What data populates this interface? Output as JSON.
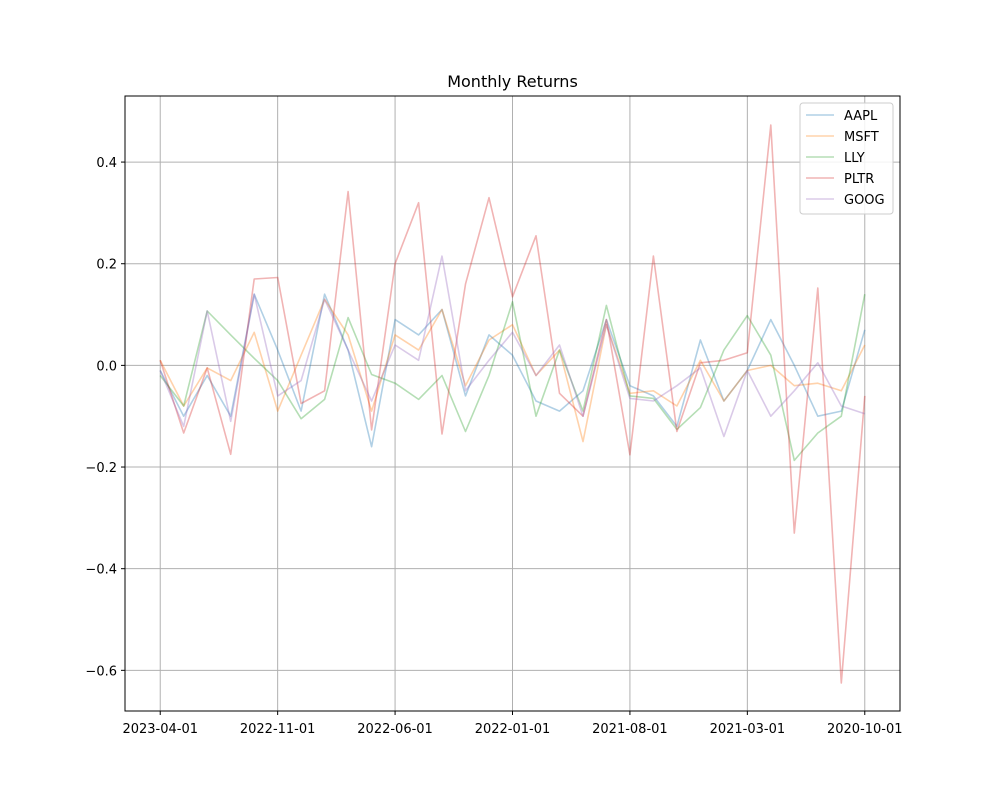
{
  "chart_data": {
    "type": "line",
    "title": "Monthly Returns",
    "xlabel": "",
    "ylabel": "",
    "x_tick_labels": [
      "2023-04-01",
      "2022-11-01",
      "2022-06-01",
      "2022-01-01",
      "2021-08-01",
      "2021-03-01",
      "2020-10-01"
    ],
    "x_tick_indices": [
      0,
      5,
      10,
      15,
      20,
      25,
      30
    ],
    "x": [
      "2023-04-01",
      "2023-03-01",
      "2023-02-01",
      "2023-01-01",
      "2022-12-01",
      "2022-11-01",
      "2022-10-01",
      "2022-09-01",
      "2022-08-01",
      "2022-07-01",
      "2022-06-01",
      "2022-05-01",
      "2022-04-01",
      "2022-03-01",
      "2022-02-01",
      "2022-01-01",
      "2021-12-01",
      "2021-11-01",
      "2021-10-01",
      "2021-09-01",
      "2021-08-01",
      "2021-07-01",
      "2021-06-01",
      "2021-05-01",
      "2021-04-01",
      "2021-03-01",
      "2021-02-01",
      "2021-01-01",
      "2020-12-01",
      "2020-11-01",
      "2020-10-01"
    ],
    "ylim": [
      -0.68,
      0.53
    ],
    "y_ticks": [
      -0.6,
      -0.4,
      -0.2,
      0.0,
      0.2,
      0.4
    ],
    "y_tick_labels": [
      "−0.6",
      "−0.4",
      "−0.2",
      "0.0",
      "0.2",
      "0.4"
    ],
    "xlim": [
      -1.5,
      31.5
    ],
    "grid": true,
    "legend_position": "top-right",
    "series": [
      {
        "name": "AAPL",
        "color": "#1f77b4",
        "values": [
          -0.01,
          -0.1,
          -0.02,
          -0.1,
          0.14,
          0.03,
          -0.09,
          0.14,
          0.03,
          -0.16,
          0.09,
          0.06,
          0.11,
          -0.06,
          0.06,
          0.02,
          -0.07,
          -0.09,
          -0.05,
          0.09,
          -0.04,
          -0.06,
          -0.12,
          0.05,
          -0.07,
          -0.01,
          0.09,
          0.0,
          -0.1,
          -0.09,
          0.07
        ]
      },
      {
        "name": "MSFT",
        "color": "#ff7f0e",
        "values": [
          0.01,
          -0.08,
          -0.005,
          -0.03,
          0.065,
          -0.09,
          0.02,
          0.13,
          0.06,
          -0.09,
          0.06,
          0.03,
          0.11,
          -0.04,
          0.05,
          0.08,
          -0.02,
          0.03,
          -0.15,
          0.08,
          -0.055,
          -0.05,
          -0.08,
          0.01,
          -0.07,
          -0.01,
          0.0,
          -0.04,
          -0.035,
          -0.05,
          0.04
        ]
      },
      {
        "name": "LLY",
        "color": "#2ca02c",
        "values": [
          -0.02,
          -0.08,
          0.107,
          0.06,
          0.014,
          -0.03,
          -0.105,
          -0.067,
          0.094,
          -0.018,
          -0.035,
          -0.067,
          -0.02,
          -0.13,
          -0.02,
          0.125,
          -0.1,
          0.03,
          -0.09,
          0.118,
          -0.06,
          -0.065,
          -0.126,
          -0.083,
          0.03,
          0.098,
          0.02,
          -0.187,
          -0.133,
          -0.1,
          0.14
        ]
      },
      {
        "name": "PLTR",
        "color": "#d62728",
        "values": [
          0.01,
          -0.133,
          -0.005,
          -0.175,
          0.17,
          0.173,
          -0.075,
          -0.05,
          0.342,
          -0.127,
          0.2,
          0.32,
          -0.135,
          0.16,
          0.33,
          0.135,
          0.255,
          -0.055,
          -0.1,
          0.09,
          -0.176,
          0.215,
          -0.13,
          0.005,
          0.01,
          0.025,
          0.473,
          -0.33,
          0.152,
          -0.625,
          -0.06
        ]
      },
      {
        "name": "GOOG",
        "color": "#9467bd",
        "values": [
          -0.01,
          -0.12,
          0.107,
          -0.11,
          0.14,
          -0.06,
          -0.03,
          0.13,
          0.03,
          -0.07,
          0.04,
          0.01,
          0.215,
          -0.05,
          0.01,
          0.065,
          -0.02,
          0.04,
          -0.1,
          0.08,
          -0.065,
          -0.07,
          -0.04,
          -0.005,
          -0.14,
          -0.01,
          -0.1,
          -0.05,
          0.005,
          -0.08,
          -0.095
        ]
      }
    ]
  }
}
